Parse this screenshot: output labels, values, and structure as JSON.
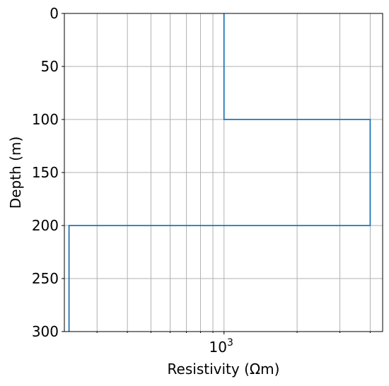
{
  "chart_data": {
    "type": "line",
    "title": "",
    "xlabel": "Resistivity (Ωm)",
    "ylabel": "Depth (m)",
    "x_scale": "log",
    "xlim": [
      220,
      4500
    ],
    "ylim": [
      300,
      0
    ],
    "grid": true,
    "x_major_ticks": [
      {
        "value": 1000,
        "base": "10",
        "exp": "3"
      }
    ],
    "x_minor_ticks": [
      300,
      400,
      500,
      600,
      700,
      800,
      900,
      2000,
      3000,
      4000
    ],
    "y_ticks": [
      0,
      50,
      100,
      150,
      200,
      250,
      300
    ],
    "series": [
      {
        "color": "#1f77b4",
        "x": [
          1000,
          1000,
          4000,
          4000,
          230,
          230
        ],
        "y": [
          0,
          100,
          100,
          200,
          200,
          300
        ]
      }
    ]
  }
}
